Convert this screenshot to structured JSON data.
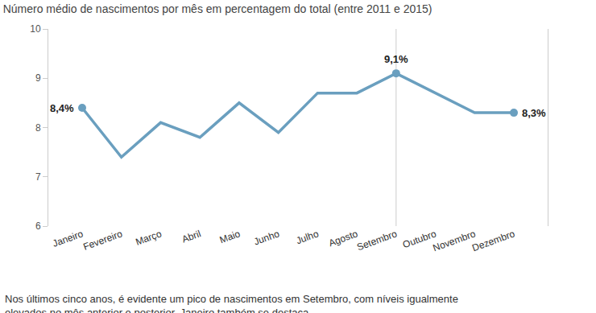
{
  "chart_data": {
    "type": "line",
    "title": "Número médio de nascimentos por mês em percentagem do total (entre 2011 e 2015)",
    "caption": "Nos últimos cinco anos, é evidente um pico de nascimentos em Setembro, com níveis igualmente elevados no mês anterior e posterior. Janeiro também se destaca.",
    "categories": [
      "Janeiro",
      "Fevereiro",
      "Março",
      "Abril",
      "Maio",
      "Junho",
      "Julho",
      "Agosto",
      "Setembro",
      "Outubro",
      "Novembro",
      "Dezembro"
    ],
    "values": [
      8.4,
      7.4,
      8.1,
      7.8,
      8.5,
      7.9,
      8.7,
      8.7,
      9.1,
      8.7,
      8.3,
      8.3
    ],
    "color": "#6a9fbf",
    "ylim": [
      6,
      10
    ],
    "yticks": [
      6,
      7,
      8,
      9,
      10
    ],
    "grid": false,
    "vline": "Setembro",
    "annotations": [
      {
        "category": "Janeiro",
        "value": 8.4,
        "text": "8,4%"
      },
      {
        "category": "Setembro",
        "value": 9.1,
        "text": "9,1%"
      },
      {
        "category": "Dezembro",
        "value": 8.3,
        "text": "8,3%"
      }
    ]
  }
}
